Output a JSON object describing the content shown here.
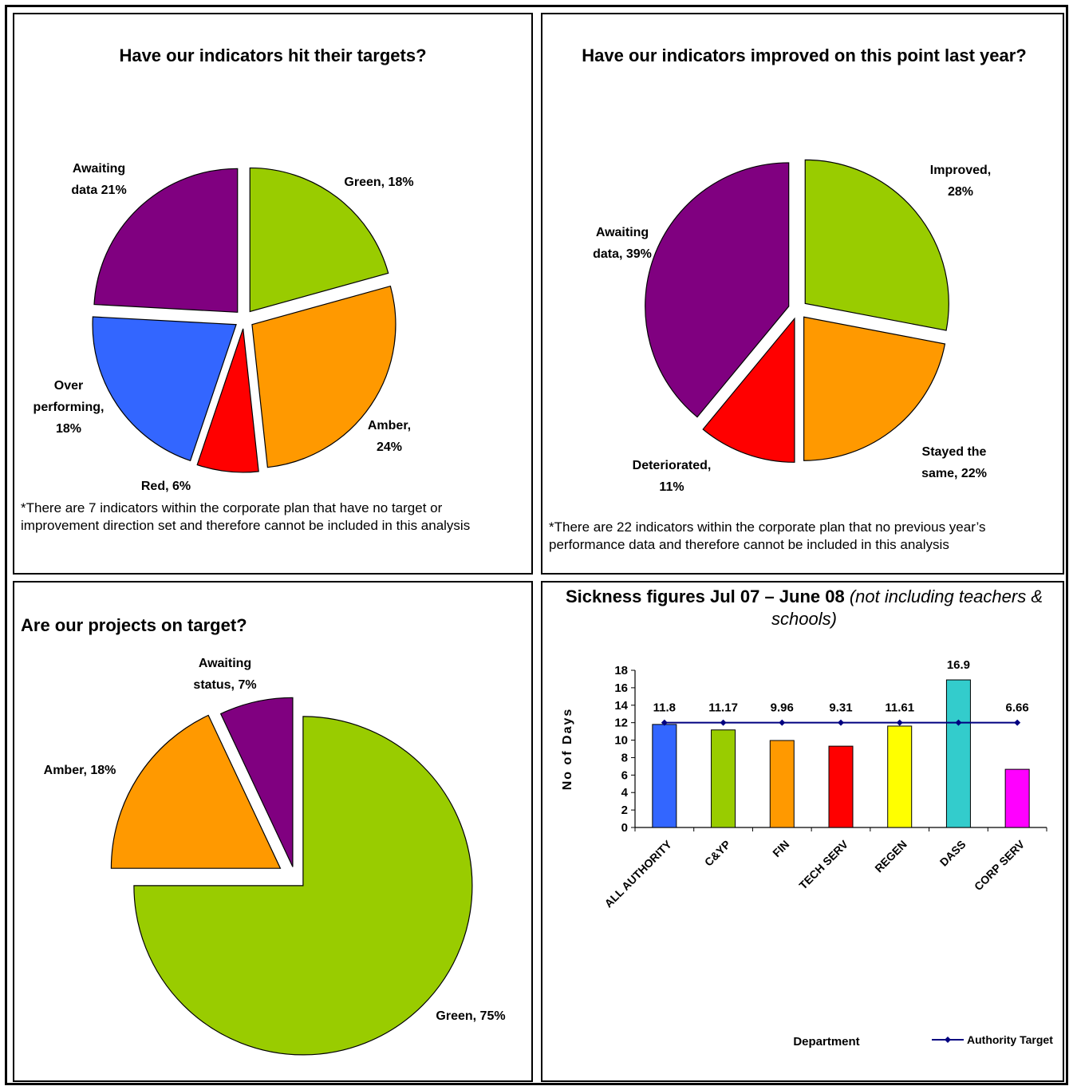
{
  "panels": {
    "p1": {
      "title": "Have our indicators hit their targets?",
      "note": "*There are 7 indicators within the corporate plan that have no target or improvement direction set and therefore cannot be included in this analysis"
    },
    "p2": {
      "title": "Have our indicators improved on this point last year?",
      "note": "*There are 22 indicators within the corporate plan that no previous year’s performance data  and therefore cannot be included in this analysis"
    },
    "p3": {
      "title": "Are our projects on target?"
    },
    "p4": {
      "title": "Sickness figures Jul 07 – June 08",
      "title_italic": "(not including teachers & schools)"
    }
  },
  "chart_data": [
    {
      "type": "pie",
      "title": "Have our indicators hit their targets?",
      "slices": [
        {
          "label_lines": [
            "Green, 18%"
          ],
          "value": 18,
          "color": "#99cc00"
        },
        {
          "label_lines": [
            "Amber,",
            "24%"
          ],
          "value": 24,
          "color": "#ff9900"
        },
        {
          "label_lines": [
            "Red, 6%"
          ],
          "value": 6,
          "color": "#ff0000"
        },
        {
          "label_lines": [
            "Over",
            "performing,",
            "18%"
          ],
          "value": 18,
          "color": "#3366ff"
        },
        {
          "label_lines": [
            "Awaiting",
            "data 21%"
          ],
          "value": 21,
          "color": "#800080"
        }
      ]
    },
    {
      "type": "pie",
      "title": "Have our indicators improved on this point last year?",
      "slices": [
        {
          "label_lines": [
            "Improved,",
            "28%"
          ],
          "value": 28,
          "color": "#99cc00"
        },
        {
          "label_lines": [
            "Stayed the",
            "same, 22%"
          ],
          "value": 22,
          "color": "#ff9900"
        },
        {
          "label_lines": [
            "Deteriorated,",
            "11%"
          ],
          "value": 11,
          "color": "#ff0000"
        },
        {
          "label_lines": [
            "Awaiting",
            "data, 39%"
          ],
          "value": 39,
          "color": "#800080"
        }
      ]
    },
    {
      "type": "pie",
      "title": "Are our projects on target?",
      "slices": [
        {
          "label_lines": [
            "Green, 75%"
          ],
          "value": 75,
          "color": "#99cc00"
        },
        {
          "label_lines": [
            "Amber, 18%"
          ],
          "value": 18,
          "color": "#ff9900"
        },
        {
          "label_lines": [
            "Awaiting",
            "status, 7%"
          ],
          "value": 7,
          "color": "#800080"
        }
      ]
    },
    {
      "type": "bar",
      "title": "Sickness figures Jul 07 – June 08 (not including teachers & schools)",
      "categories": [
        "ALL AUTHORITY",
        "C&YP",
        "FIN",
        "TECH SERV",
        "REGEN",
        "DASS",
        "CORP SERV"
      ],
      "values": [
        11.8,
        11.17,
        9.96,
        9.31,
        11.61,
        16.9,
        6.66
      ],
      "value_labels": [
        "11.8",
        "11.17",
        "9.96",
        "9.31",
        "11.61",
        "16.9",
        "6.66"
      ],
      "colors": [
        "#3366ff",
        "#99cc00",
        "#ff9900",
        "#ff0000",
        "#ffff00",
        "#33cccc",
        "#ff00ff"
      ],
      "xlabel": "Department",
      "ylabel": "No of Days",
      "ylim": [
        0,
        18
      ],
      "yticks": [
        0,
        2,
        4,
        6,
        8,
        10,
        12,
        14,
        16,
        18
      ],
      "target": {
        "name": "Authority Target",
        "value": 12,
        "color": "#000080"
      },
      "legend": "bottom-right",
      "grid": false
    }
  ]
}
